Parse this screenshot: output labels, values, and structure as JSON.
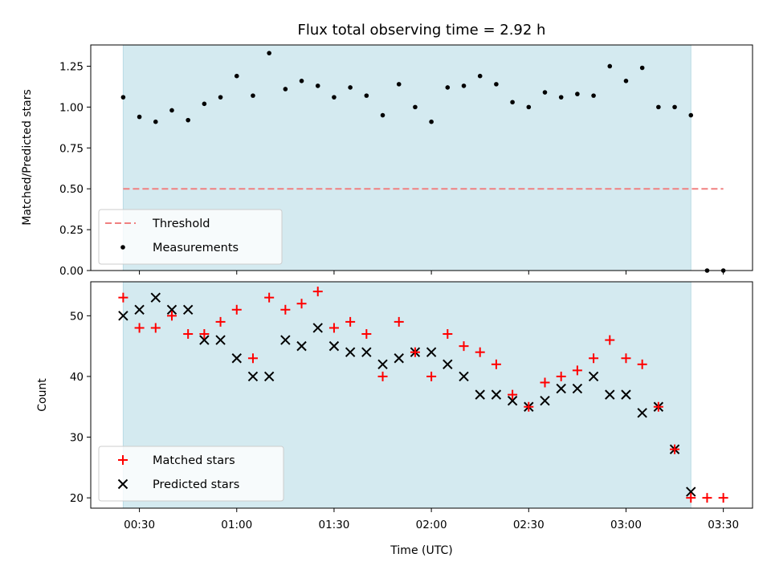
{
  "chart_data": [
    {
      "type": "scatter",
      "title": "Flux total observing time = 2.92 h",
      "ylabel": "Matched/Predicted stars",
      "xlabel": "",
      "ylim": [
        0,
        1.38
      ],
      "yticks": [
        "0.00",
        "0.25",
        "0.50",
        "0.75",
        "1.00",
        "1.25"
      ],
      "shaded_span": [
        "00:25",
        "03:20"
      ],
      "shade_color": "#d4eaf0",
      "legend": {
        "placement": "lower-left",
        "entries": [
          "Threshold",
          "Measurements"
        ]
      },
      "threshold": {
        "name": "Threshold",
        "value": 0.5,
        "x": [
          "00:25",
          "03:30"
        ],
        "color": "#f08080",
        "style": "dashed"
      },
      "series": [
        {
          "name": "Measurements",
          "color": "#000000",
          "x": [
            "00:25",
            "00:30",
            "00:35",
            "00:40",
            "00:45",
            "00:50",
            "00:55",
            "01:00",
            "01:05",
            "01:10",
            "01:15",
            "01:20",
            "01:25",
            "01:30",
            "01:35",
            "01:40",
            "01:45",
            "01:50",
            "01:55",
            "02:00",
            "02:05",
            "02:10",
            "02:15",
            "02:20",
            "02:25",
            "02:30",
            "02:35",
            "02:40",
            "02:45",
            "02:50",
            "02:55",
            "03:00",
            "03:05",
            "03:10",
            "03:15",
            "03:20",
            "03:25",
            "03:30"
          ],
          "values": [
            1.06,
            0.94,
            0.91,
            0.98,
            0.92,
            1.02,
            1.06,
            1.19,
            1.07,
            1.33,
            1.11,
            1.16,
            1.13,
            1.06,
            1.12,
            1.07,
            0.95,
            1.14,
            1.0,
            0.91,
            1.12,
            1.13,
            1.19,
            1.14,
            1.03,
            1.0,
            1.09,
            1.06,
            1.08,
            1.07,
            1.25,
            1.16,
            1.24,
            1.0,
            1.0,
            0.95,
            0.0,
            0.0
          ]
        }
      ]
    },
    {
      "type": "scatter",
      "title": "",
      "ylabel": "Count",
      "xlabel": "Time (UTC)",
      "ylim": [
        18.3,
        55.6
      ],
      "yticks": [
        "20",
        "30",
        "40",
        "50"
      ],
      "xticks": [
        "00:30",
        "01:00",
        "01:30",
        "02:00",
        "02:30",
        "03:00",
        "03:30"
      ],
      "xlim": [
        "00:15",
        "03:39"
      ],
      "shaded_span": [
        "00:25",
        "03:20"
      ],
      "shade_color": "#d4eaf0",
      "legend": {
        "placement": "lower-left",
        "entries": [
          "Matched stars",
          "Predicted stars"
        ]
      },
      "series": [
        {
          "name": "Matched stars",
          "marker": "+",
          "color": "#ff0000",
          "x": [
            "00:25",
            "00:30",
            "00:35",
            "00:40",
            "00:45",
            "00:50",
            "00:55",
            "01:00",
            "01:05",
            "01:10",
            "01:15",
            "01:20",
            "01:25",
            "01:30",
            "01:35",
            "01:40",
            "01:45",
            "01:50",
            "01:55",
            "02:00",
            "02:05",
            "02:10",
            "02:15",
            "02:20",
            "02:25",
            "02:30",
            "02:35",
            "02:40",
            "02:45",
            "02:50",
            "02:55",
            "03:00",
            "03:05",
            "03:10",
            "03:15",
            "03:20",
            "03:25",
            "03:30"
          ],
          "values": [
            53,
            48,
            48,
            50,
            47,
            47,
            49,
            51,
            43,
            53,
            51,
            52,
            54,
            48,
            49,
            47,
            40,
            49,
            44,
            40,
            47,
            45,
            44,
            42,
            37,
            35,
            39,
            40,
            41,
            43,
            46,
            43,
            42,
            35,
            28,
            20,
            20,
            20
          ]
        },
        {
          "name": "Predicted stars",
          "marker": "x",
          "color": "#000000",
          "x": [
            "00:25",
            "00:30",
            "00:35",
            "00:40",
            "00:45",
            "00:50",
            "00:55",
            "01:00",
            "01:05",
            "01:10",
            "01:15",
            "01:20",
            "01:25",
            "01:30",
            "01:35",
            "01:40",
            "01:45",
            "01:50",
            "01:55",
            "02:00",
            "02:05",
            "02:10",
            "02:15",
            "02:20",
            "02:25",
            "02:30",
            "02:35",
            "02:40",
            "02:45",
            "02:50",
            "02:55",
            "03:00",
            "03:05",
            "03:10",
            "03:15",
            "03:20"
          ],
          "values": [
            50,
            51,
            53,
            51,
            51,
            46,
            46,
            43,
            40,
            40,
            46,
            45,
            48,
            45,
            44,
            44,
            42,
            43,
            44,
            44,
            42,
            40,
            37,
            37,
            36,
            35,
            36,
            38,
            38,
            40,
            37,
            37,
            34,
            35,
            28,
            21
          ]
        }
      ]
    }
  ]
}
